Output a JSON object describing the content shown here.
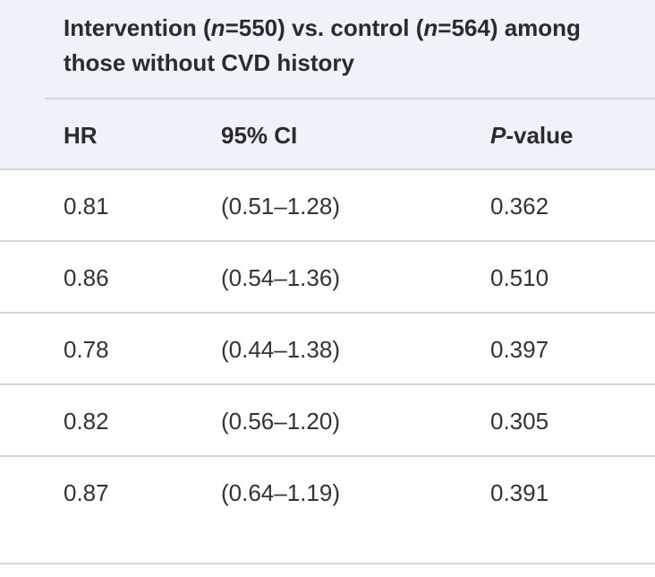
{
  "table": {
    "group_header": {
      "part1": "Intervention (",
      "n1": "n",
      "part2": "=550) vs. control (",
      "n2": "n",
      "part3": "=564) among those without CVD history"
    },
    "columns": {
      "hr": "HR",
      "ci": "95% CI",
      "p_italic": "P",
      "p_rest": "-value"
    },
    "rows": [
      {
        "hr": "0.81",
        "ci": "(0.51–1.28)",
        "p": "0.362"
      },
      {
        "hr": "0.86",
        "ci": "(0.54–1.36)",
        "p": "0.510"
      },
      {
        "hr": "0.78",
        "ci": "(0.44–1.38)",
        "p": "0.397"
      },
      {
        "hr": "0.82",
        "ci": "(0.56–1.20)",
        "p": "0.305"
      },
      {
        "hr": "0.87",
        "ci": "(0.64–1.19)",
        "p": "0.391"
      }
    ]
  }
}
